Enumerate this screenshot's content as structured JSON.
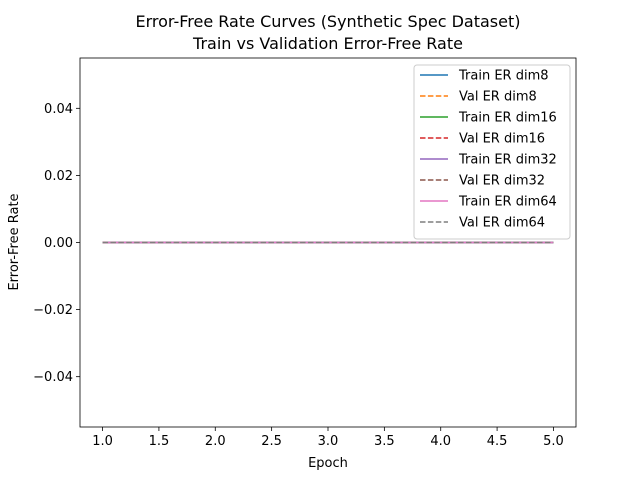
{
  "chart_data": {
    "type": "line",
    "title": "Error-Free Rate Curves (Synthetic Spec Dataset)",
    "subtitle": "Train vs Validation Error-Free Rate",
    "xlabel": "Epoch",
    "ylabel": "Error-Free Rate",
    "xlim": [
      0.8,
      5.2
    ],
    "ylim": [
      -0.055,
      0.055
    ],
    "x_ticks": [
      1.0,
      1.5,
      2.0,
      2.5,
      3.0,
      3.5,
      4.0,
      4.5,
      5.0
    ],
    "x_tick_labels": [
      "1.0",
      "1.5",
      "2.0",
      "2.5",
      "3.0",
      "3.5",
      "4.0",
      "4.5",
      "5.0"
    ],
    "y_ticks": [
      -0.04,
      -0.02,
      0.0,
      0.02,
      0.04
    ],
    "y_tick_labels": [
      "−0.04",
      "−0.02",
      "0.00",
      "0.02",
      "0.04"
    ],
    "grid": false,
    "legend_position": "top-right",
    "x": [
      1,
      2,
      3,
      4,
      5
    ],
    "series": [
      {
        "name": "Train ER dim8",
        "values": [
          0,
          0,
          0,
          0,
          0
        ],
        "color": "#1f77b4",
        "dash": "solid"
      },
      {
        "name": "Val ER dim8",
        "values": [
          0,
          0,
          0,
          0,
          0
        ],
        "color": "#ff7f0e",
        "dash": "dashed"
      },
      {
        "name": "Train ER dim16",
        "values": [
          0,
          0,
          0,
          0,
          0
        ],
        "color": "#2ca02c",
        "dash": "solid"
      },
      {
        "name": "Val ER dim16",
        "values": [
          0,
          0,
          0,
          0,
          0
        ],
        "color": "#d62728",
        "dash": "dashed"
      },
      {
        "name": "Train ER dim32",
        "values": [
          0,
          0,
          0,
          0,
          0
        ],
        "color": "#9467bd",
        "dash": "solid"
      },
      {
        "name": "Val ER dim32",
        "values": [
          0,
          0,
          0,
          0,
          0
        ],
        "color": "#8c564b",
        "dash": "dashed"
      },
      {
        "name": "Train ER dim64",
        "values": [
          0,
          0,
          0,
          0,
          0
        ],
        "color": "#e377c2",
        "dash": "solid"
      },
      {
        "name": "Val ER dim64",
        "values": [
          0,
          0,
          0,
          0,
          0
        ],
        "color": "#7f7f7f",
        "dash": "dashed"
      }
    ]
  }
}
